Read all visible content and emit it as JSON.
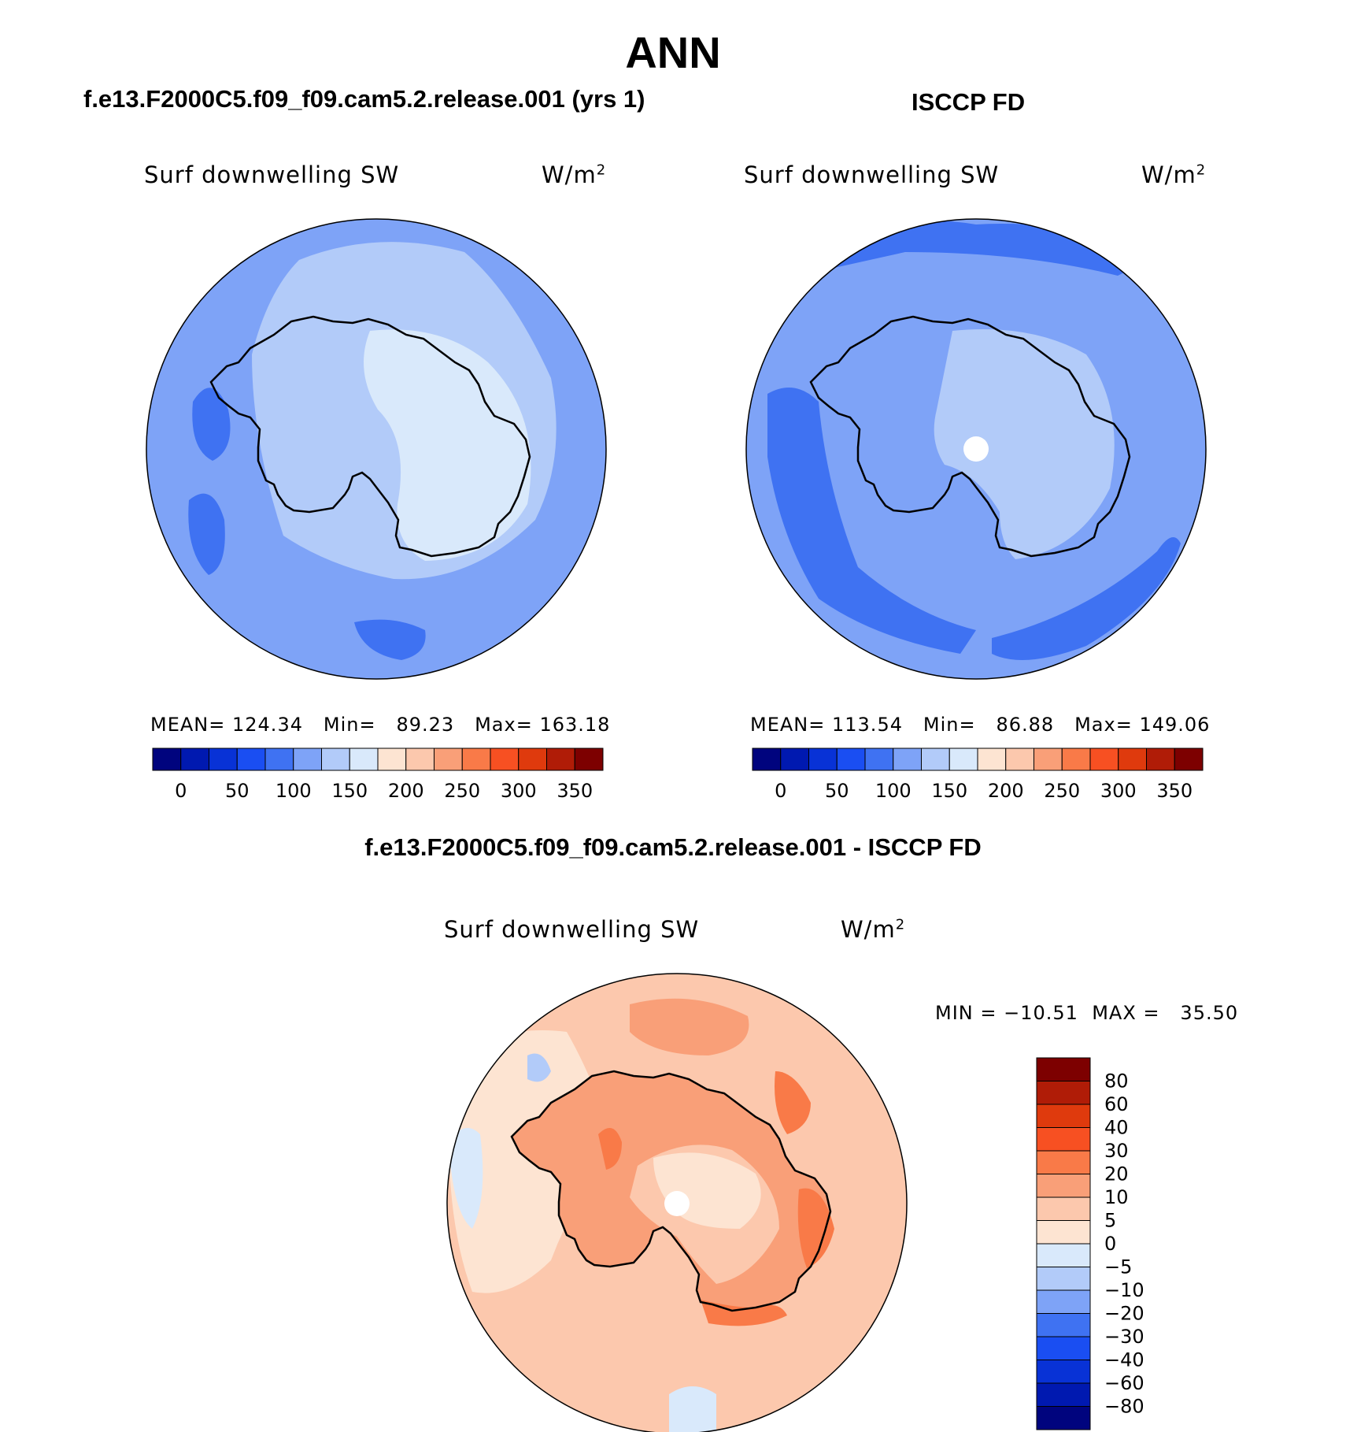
{
  "main_title": "ANN",
  "panels": [
    {
      "title": "f.e13.F2000C5.f09_f09.cam5.2.release.001 (yrs 1)",
      "variable": "Surf downwelling SW",
      "units_base": "W/m",
      "units_exp": "2",
      "mean_label": "MEAN=",
      "mean_value": "124.34",
      "min_label": "Min=",
      "min_value": "89.23",
      "max_label": "Max=",
      "max_value": "163.18"
    },
    {
      "title": "ISCCP FD",
      "variable": "Surf downwelling SW",
      "units_base": "W/m",
      "units_exp": "2",
      "mean_label": "MEAN=",
      "mean_value": "113.54",
      "min_label": "Min=",
      "min_value": "86.88",
      "max_label": "Max=",
      "max_value": "149.06"
    }
  ],
  "diff_panel": {
    "title": "f.e13.F2000C5.f09_f09.cam5.2.release.001 - ISCCP FD",
    "variable": "Surf downwelling SW",
    "units_base": "W/m",
    "units_exp": "2",
    "min_label": "MIN =",
    "min_value": "−10.51",
    "max_label": "MAX =",
    "max_value": "35.50"
  },
  "chart_data": [
    {
      "type": "heatmap",
      "projection": "south-polar-stereographic",
      "region": "Antarctica / Southern Ocean",
      "title": "f.e13.F2000C5.f09_f09.cam5.2.release.001 (yrs 1)",
      "variable": "Surf downwelling SW",
      "units": "W/m2",
      "mean": 124.34,
      "min": 89.23,
      "max": 163.18,
      "colorbar_ticks": [
        "0",
        "50",
        "100",
        "150",
        "200",
        "250",
        "300",
        "350"
      ],
      "colorbar_colors": [
        "#00047e",
        "#0019b0",
        "#0832d6",
        "#1a4ef2",
        "#3f72f2",
        "#7ea3f7",
        "#b2cbf9",
        "#d9e9fb",
        "#fde4d2",
        "#fcc8ad",
        "#f99f78",
        "#f97a48",
        "#f75022",
        "#df3a0d",
        "#b01c07",
        "#7d0000"
      ]
    },
    {
      "type": "heatmap",
      "projection": "south-polar-stereographic",
      "region": "Antarctica / Southern Ocean",
      "title": "ISCCP FD",
      "variable": "Surf downwelling SW",
      "units": "W/m2",
      "mean": 113.54,
      "min": 86.88,
      "max": 149.06,
      "colorbar_ticks": [
        "0",
        "50",
        "100",
        "150",
        "200",
        "250",
        "300",
        "350"
      ],
      "colorbar_colors": [
        "#00047e",
        "#0019b0",
        "#0832d6",
        "#1a4ef2",
        "#3f72f2",
        "#7ea3f7",
        "#b2cbf9",
        "#d9e9fb",
        "#fde4d2",
        "#fcc8ad",
        "#f99f78",
        "#f97a48",
        "#f75022",
        "#df3a0d",
        "#b01c07",
        "#7d0000"
      ]
    },
    {
      "type": "heatmap",
      "projection": "south-polar-stereographic",
      "region": "Antarctica / Southern Ocean",
      "title": "f.e13.F2000C5.f09_f09.cam5.2.release.001 - ISCCP FD",
      "variable": "Surf downwelling SW",
      "units": "W/m2",
      "min": -10.51,
      "max": 35.5,
      "colorbar_ticks": [
        "80",
        "60",
        "40",
        "30",
        "20",
        "10",
        "5",
        "0",
        "−5",
        "−10",
        "−20",
        "−30",
        "−40",
        "−60",
        "−80"
      ],
      "colorbar_colors": [
        "#7d0000",
        "#b01c07",
        "#df3a0d",
        "#f75022",
        "#f97a48",
        "#f99f78",
        "#fcc8ad",
        "#fde4d2",
        "#d9e9fb",
        "#b2cbf9",
        "#7ea3f7",
        "#3f72f2",
        "#1a4ef2",
        "#0832d6",
        "#0019b0",
        "#00047e"
      ]
    }
  ]
}
